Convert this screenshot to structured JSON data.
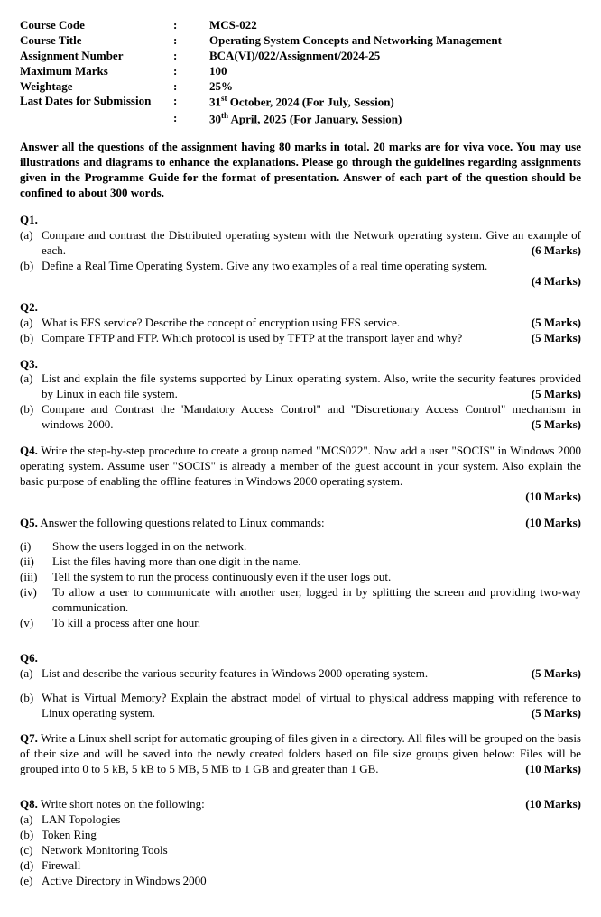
{
  "header": {
    "rows": [
      {
        "label": "Course Code",
        "value": "MCS-022"
      },
      {
        "label": "Course Title",
        "value": "Operating System Concepts and Networking Management"
      },
      {
        "label": "Assignment Number",
        "value": "BCA(VI)/022/Assignment/2024-25"
      },
      {
        "label": "Maximum Marks",
        "value": "100"
      },
      {
        "label": "Weightage",
        "value": "25%"
      },
      {
        "label": "Last Dates for Submission",
        "value": "31<sup>st</sup> October, 2024 (For July, Session)"
      },
      {
        "label": "",
        "value": "30<sup>th</sup> April, 2025 (For January, Session)"
      }
    ]
  },
  "instructions": "Answer all the questions of the assignment having 80 marks in total. 20 marks are for viva voce. You may use illustrations and diagrams to enhance the explanations. Please go through the guidelines regarding assignments given in the Programme Guide for the format of presentation. Answer of each part of the question should be confined to about 300 words.",
  "q1": {
    "title": "Q1.",
    "a_label": "(a)",
    "a_text": "Compare and contrast the Distributed operating system with the Network operating system. Give an example of each.",
    "a_marks": "(6 Marks)",
    "b_label": "(b)",
    "b_text": "Define a Real Time Operating System. Give any two examples of a real time operating system.",
    "b_marks": "(4 Marks)"
  },
  "q2": {
    "title": "Q2.",
    "a_label": "(a)",
    "a_text": "What is EFS service? Describe the concept of encryption using EFS service.",
    "a_marks": "(5 Marks)",
    "b_label": "(b)",
    "b_text": "Compare TFTP and FTP. Which protocol is used by TFTP at the transport layer and why?",
    "b_marks": "(5 Marks)"
  },
  "q3": {
    "title": "Q3.",
    "a_label": "(a)",
    "a_text": "List and explain the file systems supported by Linux operating system. Also, write the security features provided by Linux in each file system.",
    "a_marks": "(5 Marks)",
    "b_label": "(b)",
    "b_text": "Compare and Contrast the 'Mandatory Access Control\" and \"Discretionary Access Control\" mechanism in windows 2000.",
    "b_marks": "(5 Marks)"
  },
  "q4": {
    "title": "Q4.",
    "text": "Write the step-by-step procedure to create a group named \"MCS022\". Now add a user \"SOCIS\" in Windows 2000 operating system. Assume user \"SOCIS\" is already a member of the guest account in your system. Also explain the basic purpose of enabling the offline features in Windows 2000 operating system.",
    "marks": "(10 Marks)"
  },
  "q5": {
    "title": "Q5.",
    "text": "Answer the following questions related to Linux commands:",
    "marks": "(10 Marks)",
    "items": [
      {
        "label": "(i)",
        "text": "Show the users logged in on the network."
      },
      {
        "label": "(ii)",
        "text": "List the files having more than one digit in the name."
      },
      {
        "label": "(iii)",
        "text": "Tell the system to run the process continuously even if the user logs out."
      },
      {
        "label": "(iv)",
        "text": "To allow a user to communicate with another user, logged in by splitting the screen and providing two-way communication."
      },
      {
        "label": "(v)",
        "text": "To kill a process after one hour."
      }
    ]
  },
  "q6": {
    "title": "Q6.",
    "a_label": "(a)",
    "a_text": "List and describe the various security features in Windows 2000 operating system.",
    "a_marks": "(5 Marks)",
    "b_label": "(b)",
    "b_text": "What is Virtual Memory? Explain the abstract model of virtual to physical address mapping with reference to Linux operating system.",
    "b_marks": "(5 Marks)"
  },
  "q7": {
    "title": "Q7.",
    "text": "Write a Linux shell script for automatic grouping of files given in a directory. All files will be grouped on the basis of their size and will be saved into the newly created folders based on file size groups given below: Files will be grouped into 0 to 5 kB, 5 kB to 5 MB, 5 MB to 1 GB and greater than 1 GB.",
    "marks": "(10 Marks)"
  },
  "q8": {
    "title": "Q8.",
    "text": "Write short notes on the following:",
    "marks": "(10 Marks)",
    "items": [
      {
        "label": "(a)",
        "text": "LAN Topologies"
      },
      {
        "label": "(b)",
        "text": "Token Ring"
      },
      {
        "label": "(c)",
        "text": "Network Monitoring Tools"
      },
      {
        "label": "(d)",
        "text": "Firewall"
      },
      {
        "label": "(e)",
        "text": "Active Directory in Windows 2000"
      }
    ]
  }
}
